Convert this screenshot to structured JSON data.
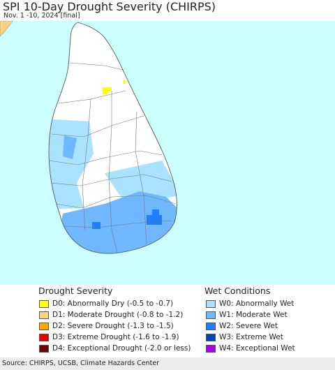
{
  "header": {
    "title": "SPI 10-Day Drought Severity (CHIRPS)",
    "subtitle": "Nov. 1 -10, 2024 [final]"
  },
  "map": {
    "ocean_color": "#ccffff",
    "land_color": "#ffffff",
    "boundary_color": "#777777",
    "regions": [
      {
        "name": "abnormally-dry-patch",
        "category": "D0"
      },
      {
        "name": "abnormally-wet-west",
        "category": "W0"
      },
      {
        "name": "moderate-wet-south",
        "category": "W1"
      },
      {
        "name": "severe-wet-southwest",
        "category": "W2"
      },
      {
        "name": "severe-wet-southeast",
        "category": "W2"
      }
    ]
  },
  "legend": {
    "drought": {
      "heading": "Drought Severity",
      "items": [
        {
          "code": "D0",
          "label": "D0: Abnormally Dry (-0.5 to -0.7)",
          "color": "#ffff00"
        },
        {
          "code": "D1",
          "label": "D1: Moderate Drought (-0.8 to -1.2)",
          "color": "#fcd37f"
        },
        {
          "code": "D2",
          "label": "D2: Severe Drought (-1.3 to -1.5)",
          "color": "#ffaa00"
        },
        {
          "code": "D3",
          "label": "D3: Extreme Drought (-1.6 to -1.9)",
          "color": "#e60000"
        },
        {
          "code": "D4",
          "label": "D4: Exceptional Drought (-2.0 or less)",
          "color": "#730000"
        }
      ]
    },
    "wet": {
      "heading": "Wet Conditions",
      "items": [
        {
          "code": "W0",
          "label": "W0: Abnormally Wet",
          "color": "#aae3ff"
        },
        {
          "code": "W1",
          "label": "W1: Moderate Wet",
          "color": "#6fb7ff"
        },
        {
          "code": "W2",
          "label": "W2: Severe Wet",
          "color": "#1f7fff"
        },
        {
          "code": "W3",
          "label": "W3: Extreme Wet",
          "color": "#0047b3"
        },
        {
          "code": "W4",
          "label": "W4: Exceptional Wet",
          "color": "#aa00e6"
        }
      ]
    }
  },
  "footer": {
    "source": "Source: CHIRPS, UCSB, Climate Hazards Center"
  }
}
